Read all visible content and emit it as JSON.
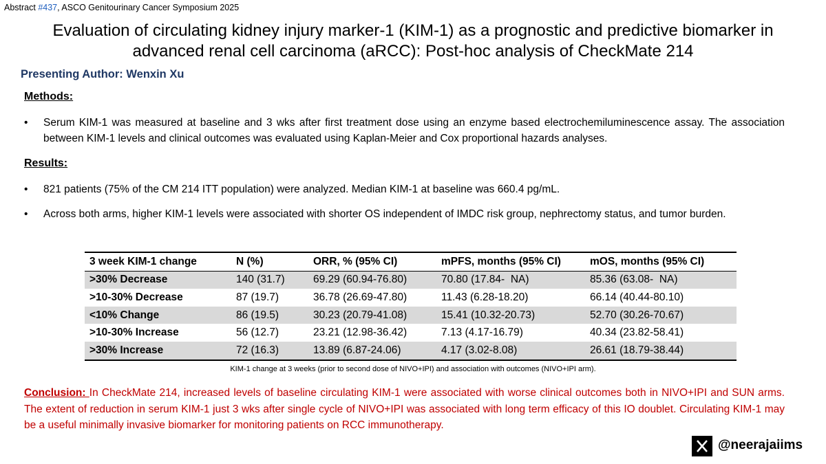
{
  "header": {
    "abstract_prefix": "Abstract ",
    "abstract_number": "#437",
    "abstract_suffix": ", ASCO Genitourinary Cancer Symposium 2025",
    "title_lines": [
      "Evaluation of circulating kidney injury marker-1 (KIM-1) as a prognostic and predictive biomarker in",
      "advanced renal cell carcinoma (aRCC): Post-hoc analysis of CheckMate 214"
    ],
    "author": "Presenting Author: Wenxin Xu"
  },
  "methods": {
    "heading": "Methods:",
    "bullets": [
      "Serum KIM-1 was measured at baseline and 3 wks after first treatment dose using an enzyme based electrochemiluminescence assay. The association between KIM-1 levels and clinical outcomes was evaluated using Kaplan-Meier and Cox proportional hazards analyses."
    ]
  },
  "results": {
    "heading": "Results:",
    "bullets": [
      "821 patients (75% of the CM 214 ITT population) were analyzed. Median KIM-1 at baseline was 660.4 pg/mL.",
      "Across both arms, higher KIM-1 levels were associated with shorter OS independent of IMDC risk group, nephrectomy status, and tumor burden."
    ]
  },
  "table": {
    "header": [
      "3 week KIM-1 change",
      "N (%)",
      "ORR, % (95% CI)",
      "mPFS, months (95% CI)",
      "mOS, months (95% CI)"
    ],
    "rows": [
      [
        ">30% Decrease",
        "140 (31.7)",
        "69.29 (60.94-76.80)",
        "70.80 (17.84-  NA)",
        "85.36 (63.08-  NA)"
      ],
      [
        ">10-30% Decrease",
        "87 (19.7)",
        "36.78 (26.69-47.80)",
        "11.43 (6.28-18.20)",
        "66.14 (40.44-80.10)"
      ],
      [
        "<10% Change",
        "86 (19.5)",
        "30.23 (20.79-41.08)",
        "15.41 (10.32-20.73)",
        "52.70 (30.26-70.67)"
      ],
      [
        ">10-30% Increase",
        "56 (12.7)",
        "23.21 (12.98-36.42)",
        "7.13 (4.17-16.79)",
        "40.34 (23.82-58.41)"
      ],
      [
        ">30% Increase",
        "72 (16.3)",
        "13.89 (6.87-24.06)",
        "4.17 (3.02-8.08)",
        "26.61 (18.79-38.44)"
      ]
    ],
    "caption": "KIM-1 change at 3 weeks (prior to second dose of NIVO+IPI) and association with outcomes (NIVO+IPI arm)."
  },
  "conclusion": {
    "label": "Conclusion: ",
    "text": "In CheckMate 214, increased levels of baseline circulating KIM-1 were associated with worse clinical outcomes both in NIVO+IPI and SUN arms. The extent of reduction in serum KIM-1 just 3 wks after single cycle of NIVO+IPI was associated with long term efficacy of this IO doublet. Circulating KIM-1 may be a useful minimally invasive biomarker for monitoring patients on RCC immunotherapy."
  },
  "social": {
    "handle": "@neerajaiims"
  }
}
